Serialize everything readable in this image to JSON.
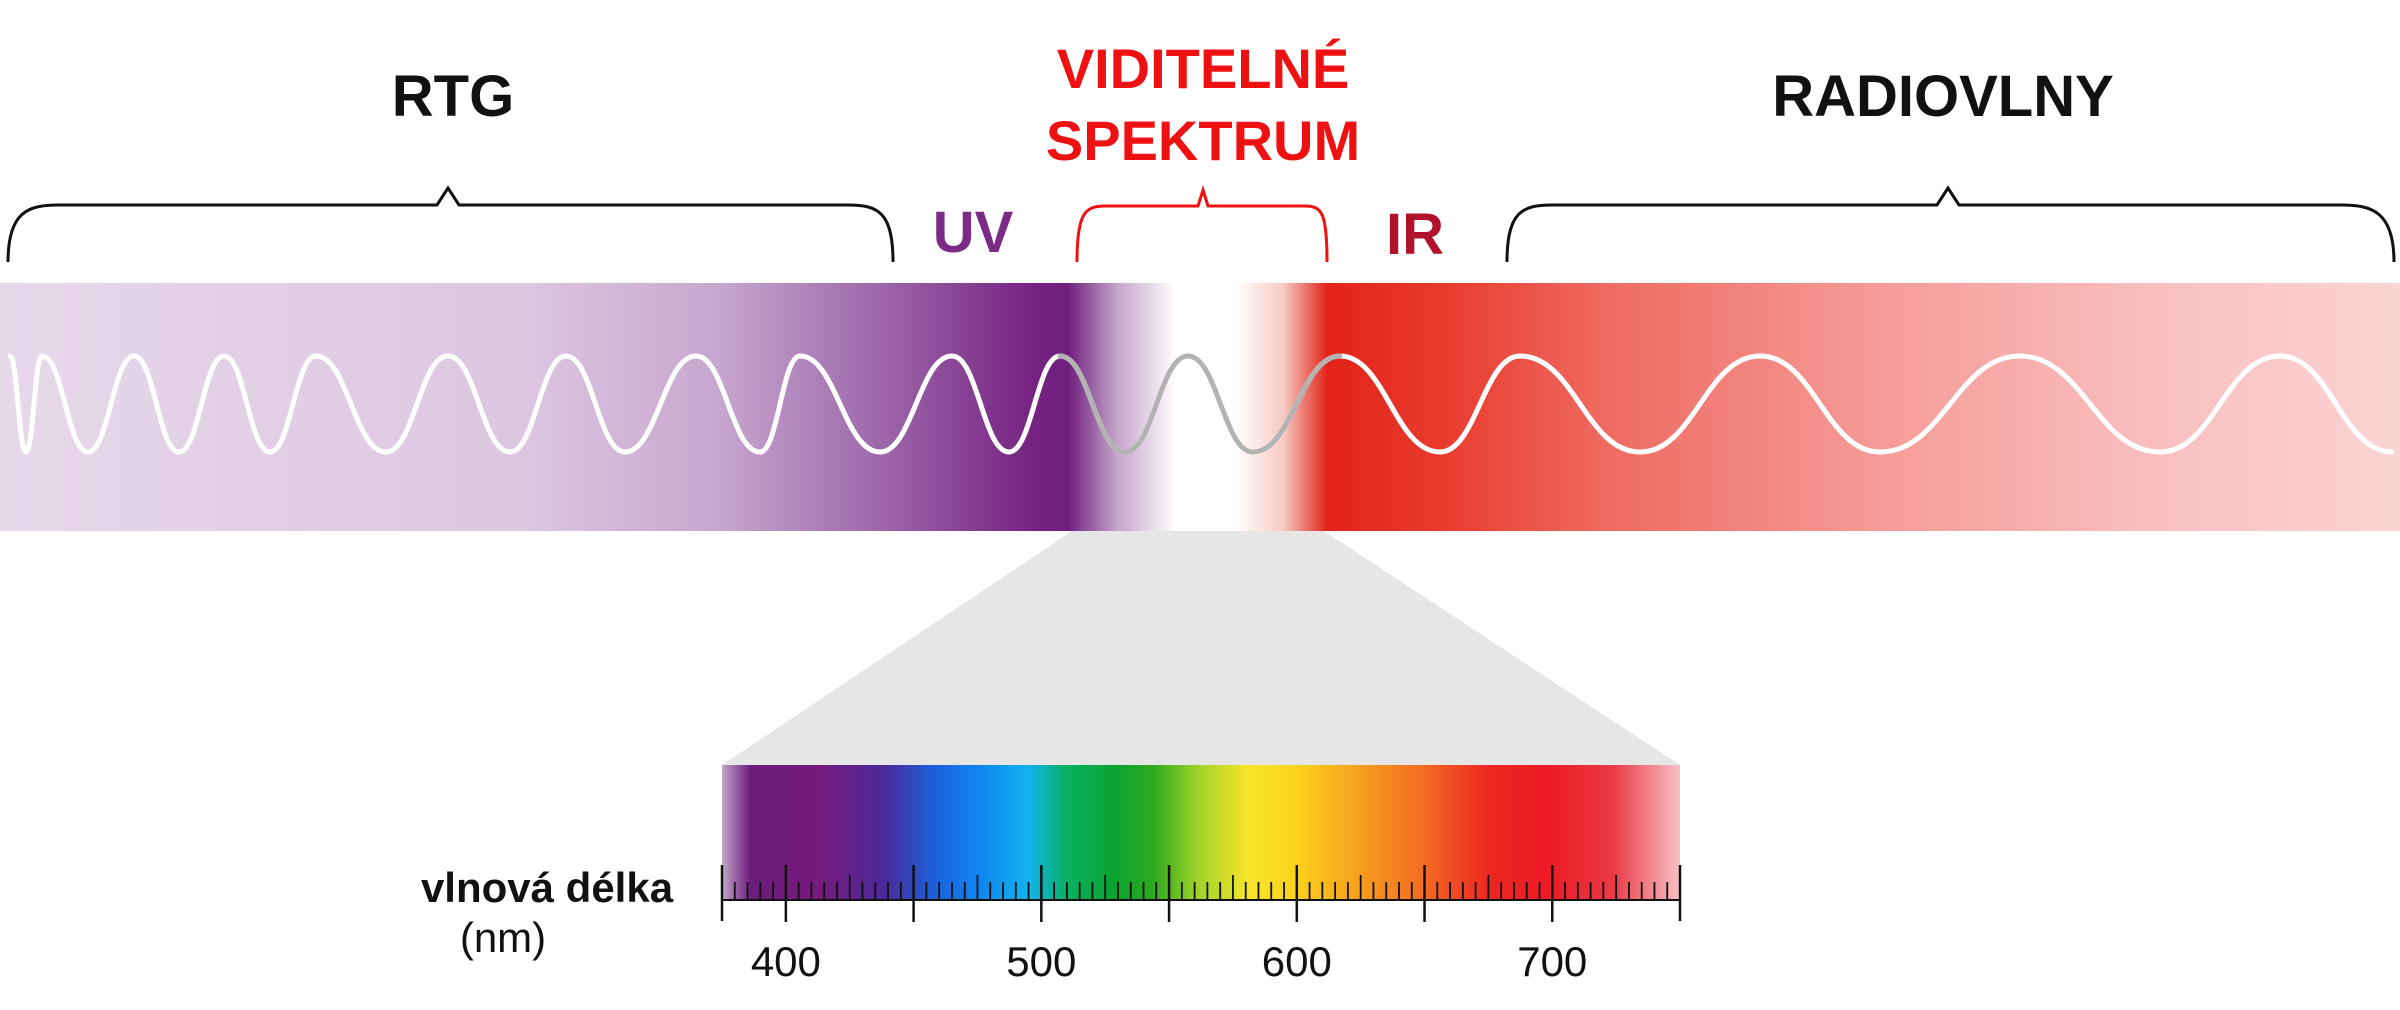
{
  "labels": {
    "xray": "RTG",
    "visible_line1": "VIDITELNÉ",
    "visible_line2": "SPEKTRUM",
    "radio": "RADIOVLNY",
    "uv": "UV",
    "ir": "IR",
    "axis_title": "vlnová délka",
    "axis_unit": "(nm)"
  },
  "colors": {
    "text": "#111111",
    "visible": "#ee1111",
    "uv": "#7b2a86",
    "ir": "#b0122c",
    "cone": "#e6e6e6",
    "wave": "#ffffff"
  },
  "scale": {
    "min": 375,
    "max": 750,
    "minor_step": 5,
    "major_labels": [
      400,
      500,
      600,
      700
    ]
  }
}
